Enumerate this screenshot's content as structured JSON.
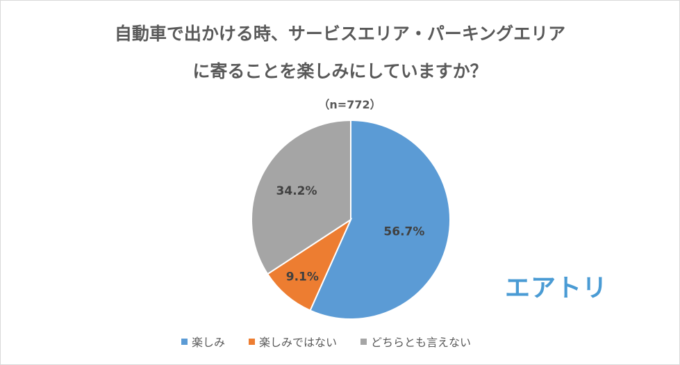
{
  "chart_data": {
    "type": "pie",
    "title_line1": "自動車で出かける時、サービスエリア・パーキングエリア",
    "title_line2": "に寄ることを楽しみにしていますか？",
    "subtitle": "（n=772）",
    "slices": [
      {
        "name": "楽しみ",
        "value": 56.7,
        "label": "56.7%",
        "color": "#5b9bd5"
      },
      {
        "name": "楽しみではない",
        "value": 9.1,
        "label": "9.1%",
        "color": "#ed7d31"
      },
      {
        "name": "どちらとも言えない",
        "value": 34.2,
        "label": "34.2%",
        "color": "#a5a5a5"
      }
    ],
    "legend_position": "bottom"
  },
  "logo": "エアトリ"
}
